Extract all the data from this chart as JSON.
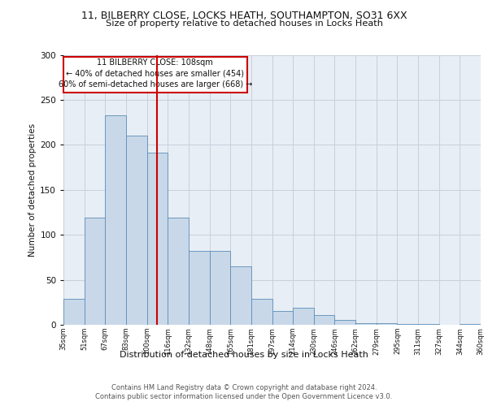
{
  "title1": "11, BILBERRY CLOSE, LOCKS HEATH, SOUTHAMPTON, SO31 6XX",
  "title2": "Size of property relative to detached houses in Locks Heath",
  "xlabel": "Distribution of detached houses by size in Locks Heath",
  "ylabel": "Number of detached properties",
  "categories": [
    "35sqm",
    "51sqm",
    "67sqm",
    "83sqm",
    "100sqm",
    "116sqm",
    "132sqm",
    "148sqm",
    "165sqm",
    "181sqm",
    "197sqm",
    "214sqm",
    "230sqm",
    "246sqm",
    "262sqm",
    "279sqm",
    "295sqm",
    "311sqm",
    "327sqm",
    "344sqm",
    "360sqm"
  ],
  "values": [
    29,
    119,
    233,
    210,
    191,
    119,
    82,
    82,
    65,
    29,
    15,
    19,
    11,
    5,
    2,
    2,
    1,
    1,
    0,
    1
  ],
  "bar_color": "#c8d8e8",
  "bar_edge_color": "#5b8db8",
  "annotation_line": "11 BILBERRY CLOSE: 108sqm",
  "annotation_line2": "← 40% of detached houses are smaller (454)",
  "annotation_line3": "60% of semi-detached houses are larger (668) →",
  "box_color": "#cc0000",
  "footer1": "Contains HM Land Registry data © Crown copyright and database right 2024.",
  "footer2": "Contains public sector information licensed under the Open Government Licence v3.0.",
  "ylim": [
    0,
    300
  ],
  "background_color": "#ffffff",
  "plot_bg_color": "#e8eef5",
  "grid_color": "#c8d0dc"
}
